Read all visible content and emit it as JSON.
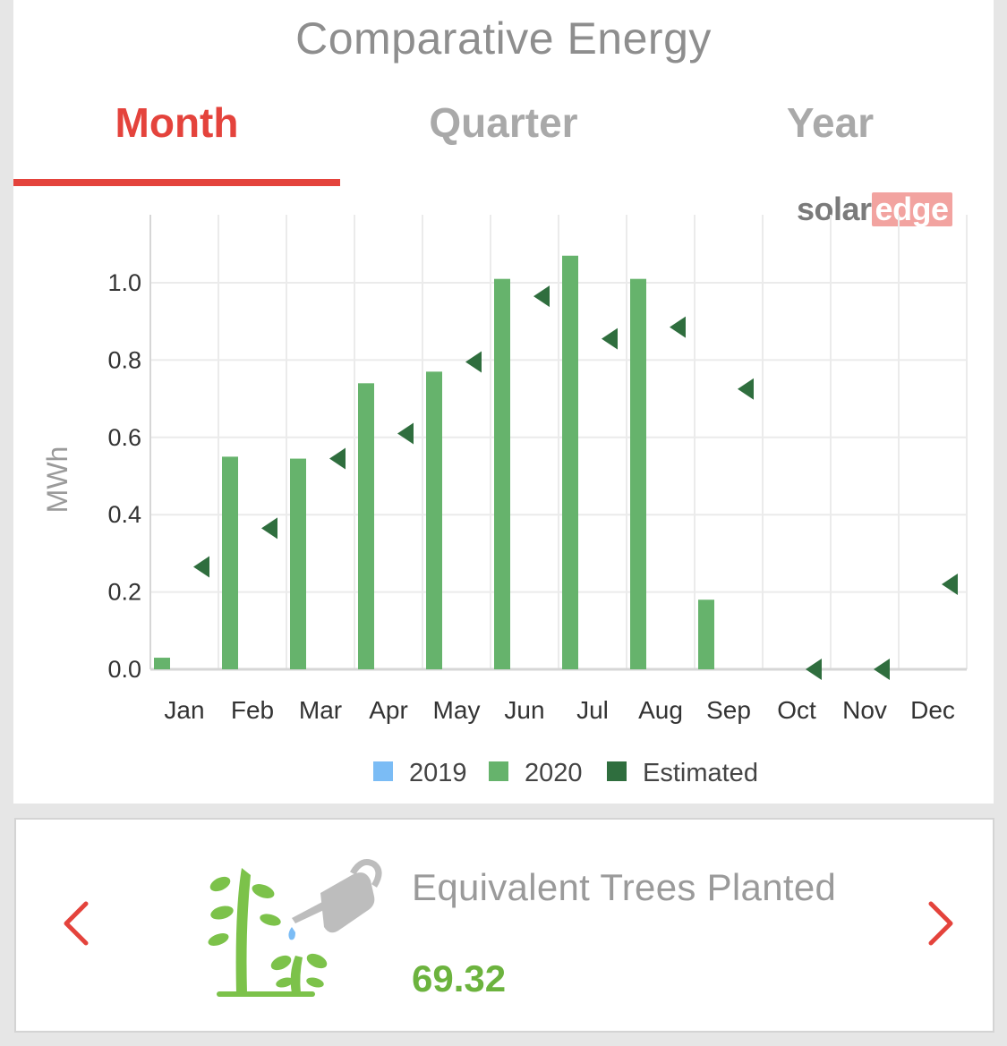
{
  "header": {
    "title": "Comparative Energy"
  },
  "tabs": [
    {
      "label": "Month",
      "active": true
    },
    {
      "label": "Quarter",
      "active": false
    },
    {
      "label": "Year",
      "active": false
    }
  ],
  "logo": {
    "part1": "solar",
    "part2": "edge"
  },
  "colors": {
    "accent": "#e4433c",
    "series_2019": "#7bbcf5",
    "series_2020": "#66b36c",
    "estimated": "#2f6e3e"
  },
  "chart_data": {
    "type": "bar",
    "ylabel": "MWh",
    "ylim": [
      0,
      1.15
    ],
    "yticks": [
      "0.0",
      "0.2",
      "0.4",
      "0.6",
      "0.8",
      "1.0"
    ],
    "grid": true,
    "categories": [
      "Jan",
      "Feb",
      "Mar",
      "Apr",
      "May",
      "Jun",
      "Jul",
      "Aug",
      "Sep",
      "Oct",
      "Nov",
      "Dec"
    ],
    "series": [
      {
        "name": "2019",
        "values": [
          null,
          null,
          null,
          null,
          null,
          null,
          null,
          null,
          null,
          null,
          null,
          null
        ]
      },
      {
        "name": "2020",
        "values": [
          0.03,
          0.55,
          0.545,
          0.74,
          0.77,
          1.01,
          1.07,
          1.01,
          0.18,
          null,
          null,
          null
        ]
      },
      {
        "name": "Estimated",
        "marker": "triangle",
        "values": [
          0.265,
          0.365,
          0.545,
          0.61,
          0.795,
          0.965,
          0.855,
          0.885,
          0.725,
          0.0,
          0.0,
          0.22
        ]
      }
    ],
    "legend": "bottom-center"
  },
  "widget": {
    "label": "Equivalent Trees Planted",
    "value": "69.32"
  },
  "nav": {
    "prev_icon": "chevron-left-icon",
    "next_icon": "chevron-right-icon"
  }
}
